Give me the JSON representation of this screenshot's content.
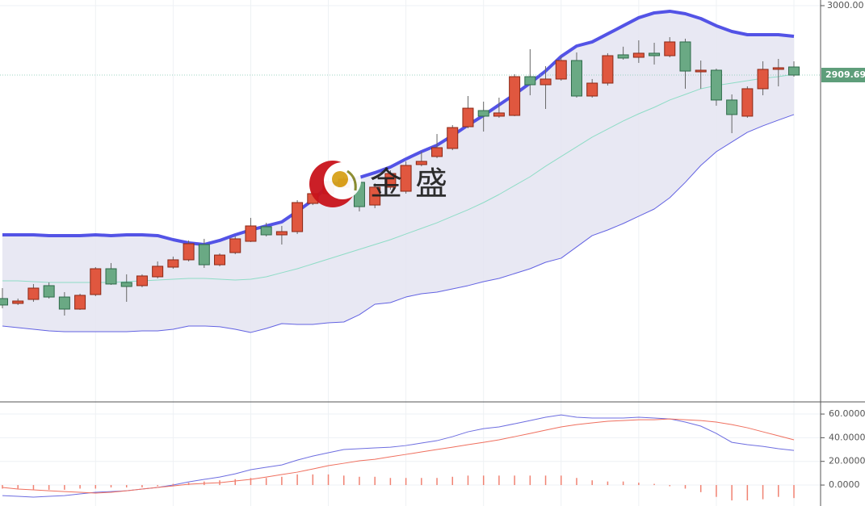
{
  "chart_data": [
    {
      "type": "candlestick",
      "watermark": "金盛",
      "open": [
        2618.9,
        2612.6,
        2617.8,
        2635.7,
        2620.9,
        2605.2,
        2624.1,
        2657.7,
        2639.9,
        2635.7,
        2647.2,
        2659.8,
        2669.3,
        2689.2,
        2662.9,
        2678.7,
        2693.4,
        2712.3,
        2701.8,
        2706.0,
        2742.7,
        2755.4,
        2763.8,
        2770.1,
        2740.6,
        2763.8,
        2758.5,
        2793.2,
        2803.7,
        2814.2,
        2842.5,
        2863.5,
        2856.2,
        2857.2,
        2907.6,
        2897.1,
        2904.5,
        2928.6,
        2882.4,
        2899.2,
        2936.0,
        2932.8,
        2938.1,
        2934.9,
        2952.8,
        2913.9,
        2916.0,
        2877.2,
        2856.2,
        2891.9,
        2917.1,
        2920.2
      ],
      "high": [
        2632.5,
        2618.9,
        2637.8,
        2639.9,
        2627.3,
        2625.2,
        2659.8,
        2665.1,
        2650.4,
        2650.4,
        2667.2,
        2673.5,
        2694.5,
        2696.6,
        2677.7,
        2699.7,
        2723.9,
        2717.5,
        2713.4,
        2746.9,
        2758.5,
        2775.3,
        2777.4,
        2776.4,
        2769.0,
        2785.8,
        2797.4,
        2810.0,
        2833.0,
        2844.6,
        2882.4,
        2875.1,
        2880.3,
        2910.8,
        2943.3,
        2921.3,
        2933.9,
        2939.1,
        2904.5,
        2938.1,
        2946.6,
        2954.9,
        2951.7,
        2959.0,
        2957.0,
        2928.6,
        2918.1,
        2884.5,
        2895.0,
        2927.6,
        2930.7,
        2927.6
      ],
      "low": [
        2606.2,
        2610.5,
        2614.7,
        2618.9,
        2596.8,
        2604.2,
        2622.0,
        2636.7,
        2614.7,
        2633.6,
        2645.1,
        2657.7,
        2667.2,
        2658.8,
        2660.9,
        2676.6,
        2692.4,
        2699.7,
        2689.2,
        2702.9,
        2740.6,
        2753.3,
        2761.7,
        2732.3,
        2736.5,
        2760.6,
        2755.4,
        2791.0,
        2801.6,
        2812.0,
        2840.4,
        2836.2,
        2854.1,
        2856.2,
        2883.4,
        2865.6,
        2902.4,
        2880.3,
        2880.3,
        2896.1,
        2929.7,
        2925.5,
        2923.4,
        2932.8,
        2891.9,
        2891.9,
        2869.8,
        2834.1,
        2854.1,
        2883.4,
        2895.0,
        2907.6
      ],
      "close": [
        2610.5,
        2615.7,
        2632.5,
        2620.9,
        2605.2,
        2623.1,
        2657.7,
        2637.8,
        2634.6,
        2648.3,
        2660.9,
        2669.3,
        2690.3,
        2662.9,
        2675.5,
        2696.6,
        2713.4,
        2701.8,
        2706.0,
        2743.8,
        2755.4,
        2771.1,
        2774.3,
        2738.5,
        2763.8,
        2781.6,
        2792.1,
        2797.4,
        2815.2,
        2841.4,
        2866.6,
        2856.2,
        2860.4,
        2907.6,
        2897.1,
        2904.5,
        2928.6,
        2882.4,
        2899.2,
        2934.9,
        2931.8,
        2938.1,
        2934.9,
        2952.8,
        2914.9,
        2916.0,
        2877.2,
        2858.3,
        2891.9,
        2917.1,
        2919.2,
        2909.69
      ],
      "up_color": "#e0573f",
      "up_border": "#8a2816",
      "down_color": "#6aa984",
      "down_border": "#2e6b4a",
      "band_fill": "#e4e4f1",
      "bands": [
        {
          "color": "#5353e6",
          "width": 4,
          "values": [
            2701.8,
            2701.8,
            2701.8,
            2700.8,
            2700.8,
            2700.8,
            2701.8,
            2700.8,
            2701.8,
            2701.8,
            2700.8,
            2695.5,
            2691.3,
            2689.2,
            2694.5,
            2701.8,
            2708.1,
            2713.4,
            2718.6,
            2732.3,
            2747.0,
            2765.9,
            2771.1,
            2776.4,
            2782.7,
            2790.0,
            2800.5,
            2810.0,
            2818.4,
            2831.0,
            2844.6,
            2857.2,
            2870.9,
            2884.5,
            2899.2,
            2915.0,
            2933.9,
            2947.5,
            2952.8,
            2963.3,
            2973.8,
            2984.3,
            2990.6,
            2992.7,
            2989.5,
            2983.2,
            2973.8,
            2966.4,
            2962.2,
            2962.2,
            2962.2,
            2960.1
          ]
        },
        {
          "color": "#8edcc6",
          "width": 1,
          "values": [
            2642.0,
            2642.0,
            2640.9,
            2639.9,
            2639.9,
            2639.9,
            2639.9,
            2639.9,
            2640.9,
            2642.0,
            2643.0,
            2644.1,
            2645.1,
            2645.1,
            2644.1,
            2643.0,
            2644.1,
            2647.2,
            2652.5,
            2657.7,
            2664.0,
            2670.3,
            2676.6,
            2682.9,
            2689.2,
            2695.5,
            2702.9,
            2710.2,
            2717.5,
            2726.0,
            2734.4,
            2743.8,
            2754.3,
            2765.9,
            2777.4,
            2791.1,
            2803.7,
            2816.3,
            2828.9,
            2839.4,
            2849.9,
            2859.3,
            2867.7,
            2877.2,
            2884.5,
            2891.9,
            2896.1,
            2899.2,
            2902.4,
            2905.5,
            2907.6,
            2910.8
          ]
        },
        {
          "color": "#6262e2",
          "width": 1,
          "values": [
            2583.2,
            2581.0,
            2578.9,
            2576.9,
            2575.8,
            2575.8,
            2575.8,
            2575.8,
            2575.8,
            2576.9,
            2576.9,
            2578.9,
            2583.2,
            2583.2,
            2582.2,
            2578.9,
            2574.8,
            2580.0,
            2586.3,
            2585.3,
            2585.3,
            2587.4,
            2588.4,
            2597.9,
            2611.5,
            2613.6,
            2620.9,
            2625.2,
            2627.3,
            2631.5,
            2635.7,
            2640.9,
            2645.1,
            2651.4,
            2657.7,
            2666.1,
            2671.4,
            2686.1,
            2700.8,
            2708.1,
            2716.5,
            2726.0,
            2735.4,
            2750.1,
            2770.1,
            2792.1,
            2810.0,
            2822.6,
            2835.2,
            2843.6,
            2851.1,
            2858.3
          ]
        }
      ],
      "ylim": [
        2485.5,
        3007.35
      ],
      "yticks": [
        {
          "value": 3000,
          "label": "3000.00"
        }
      ],
      "last_price": {
        "value": 2909.69,
        "label": "2909.69"
      },
      "last_price_color": "#5e9e7a"
    },
    {
      "type": "macd",
      "series": [
        {
          "style": "line",
          "color": "#6d6de0",
          "values": [
            -8.9,
            -9.5,
            -10.2,
            -9.5,
            -8.9,
            -7.5,
            -6.1,
            -5.5,
            -4.8,
            -3.4,
            -2.0,
            0.0,
            2.7,
            4.8,
            6.8,
            9.5,
            13.0,
            15.0,
            17.0,
            21.1,
            24.5,
            27.3,
            30.0,
            30.7,
            31.4,
            32.0,
            33.4,
            35.5,
            37.5,
            40.9,
            45.0,
            47.7,
            49.1,
            51.8,
            54.5,
            57.3,
            59.3,
            57.3,
            56.6,
            56.6,
            56.6,
            57.3,
            56.6,
            55.9,
            53.2,
            49.8,
            43.6,
            36.1,
            34.1,
            32.7,
            30.7,
            29.3
          ]
        },
        {
          "style": "line",
          "color": "#ef6f5e",
          "values": [
            -2.0,
            -3.4,
            -4.1,
            -4.8,
            -5.5,
            -6.1,
            -6.8,
            -6.1,
            -4.8,
            -3.4,
            -2.0,
            -0.7,
            0.7,
            1.4,
            2.0,
            3.4,
            4.8,
            6.8,
            8.9,
            10.9,
            13.6,
            16.4,
            18.4,
            20.5,
            21.8,
            23.9,
            25.9,
            28.0,
            30.0,
            32.0,
            34.1,
            36.1,
            38.2,
            40.9,
            43.6,
            46.4,
            49.1,
            51.1,
            52.5,
            53.9,
            54.5,
            55.2,
            55.2,
            55.9,
            55.2,
            54.5,
            53.2,
            51.1,
            48.4,
            45.0,
            41.6,
            38.2
          ]
        },
        {
          "style": "bar",
          "color": "#f08272",
          "values": [
            -3,
            -3,
            -4,
            -4,
            -4,
            -3,
            -3,
            -2,
            -2,
            -2,
            -1,
            1,
            2,
            3,
            4,
            5,
            6,
            6,
            7,
            9,
            9,
            9,
            8,
            7,
            7,
            6,
            6,
            6,
            6,
            7,
            8,
            8,
            8,
            8,
            8,
            8,
            8,
            6,
            4,
            3,
            3,
            2,
            1,
            -1,
            -3,
            -6,
            -10,
            -13,
            -13,
            -12,
            -10,
            -11
          ]
        }
      ],
      "ylim": [
        -17.7,
        68.9
      ],
      "yticks": [
        {
          "value": 60,
          "label": "60.0000"
        },
        {
          "value": 40,
          "label": "40.0000"
        },
        {
          "value": 20,
          "label": "20.0000"
        },
        {
          "value": 0,
          "label": "0.0000"
        }
      ]
    }
  ]
}
